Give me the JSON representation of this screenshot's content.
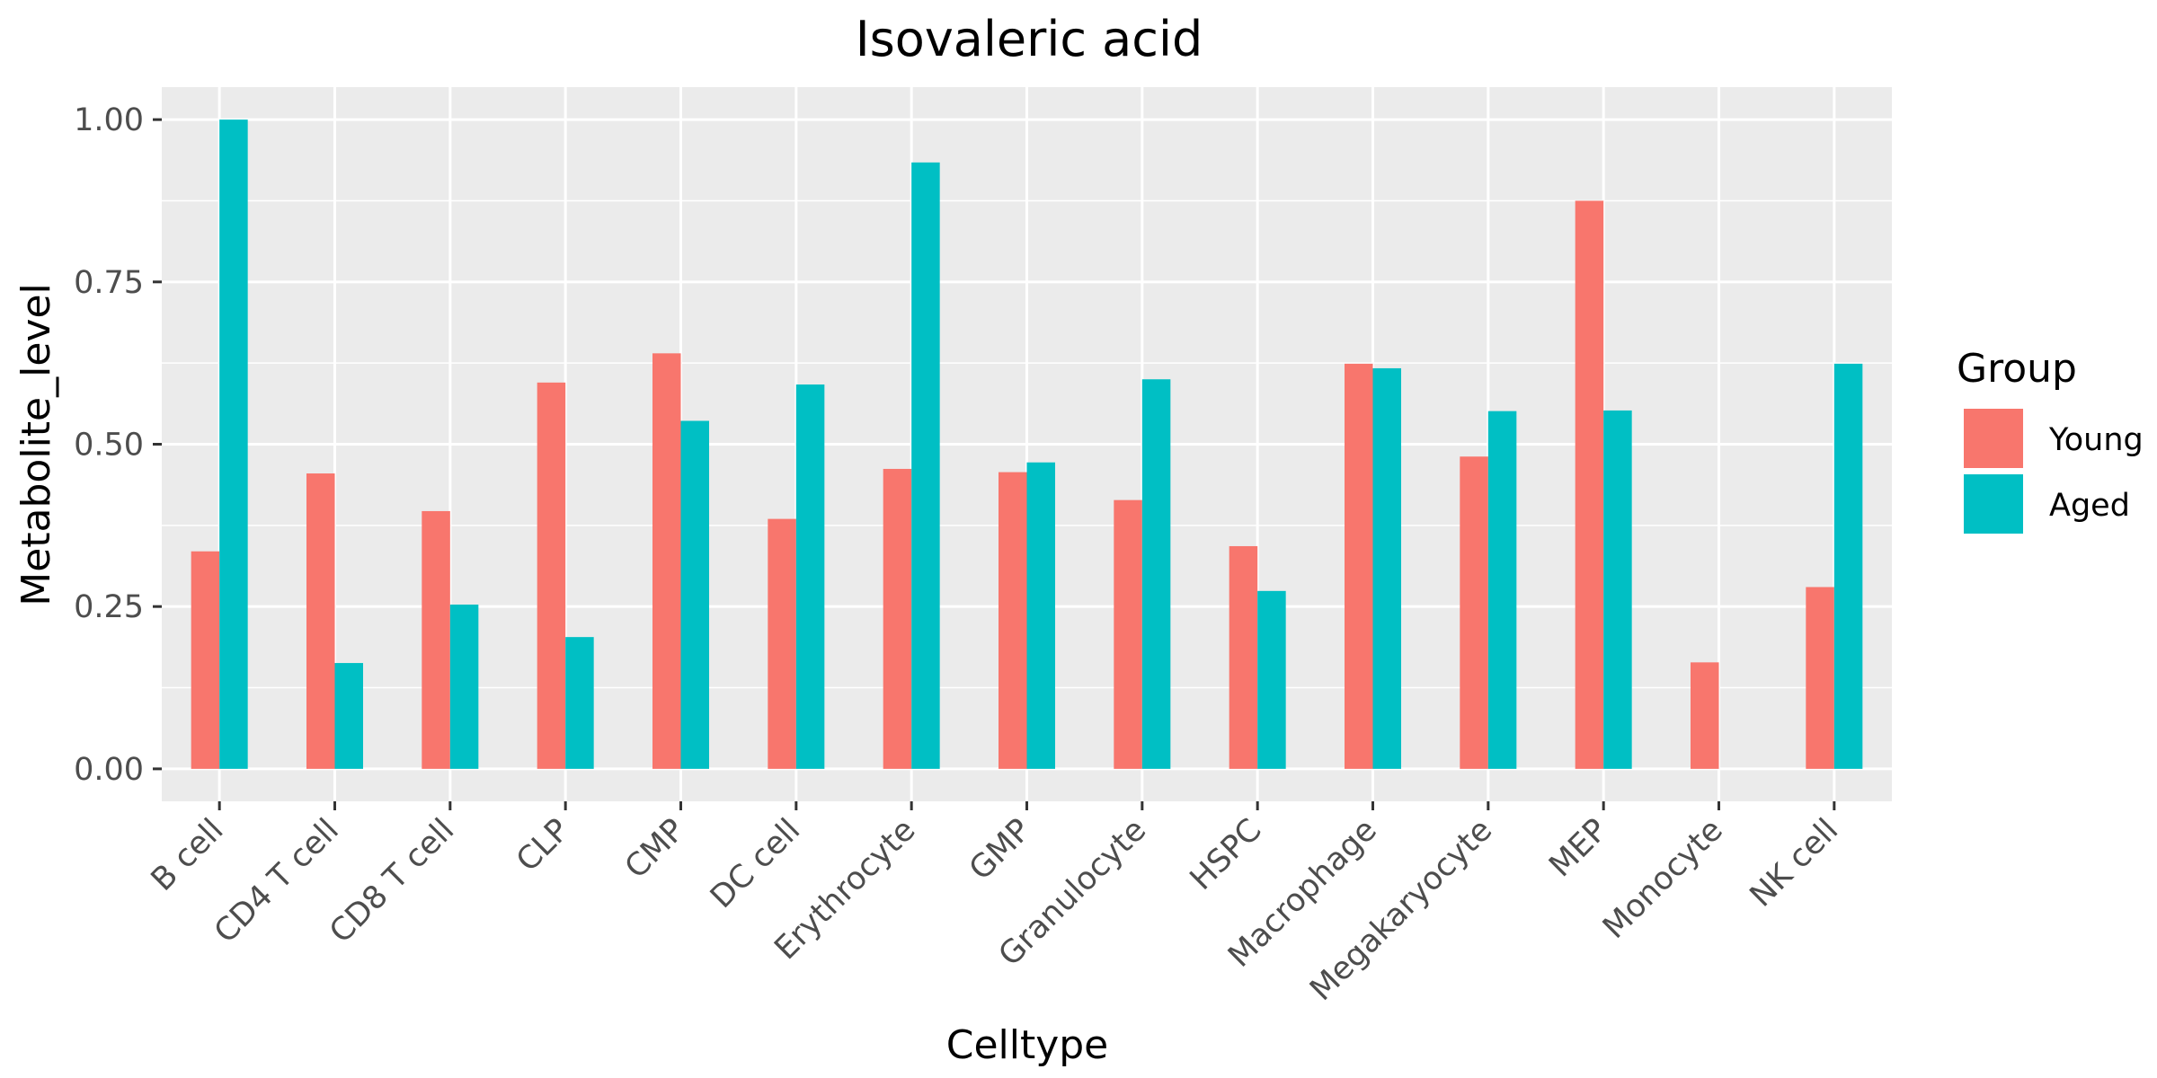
{
  "chart_data": {
    "type": "bar",
    "title": "Isovaleric acid",
    "xlabel": "Celltype",
    "ylabel": "Metabolite_level",
    "ylim": [
      -0.05,
      1.05
    ],
    "yticks": [
      "0.00",
      "0.25",
      "0.50",
      "0.75",
      "1.00"
    ],
    "ytick_values": [
      0,
      0.25,
      0.5,
      0.75,
      1.0
    ],
    "grid": true,
    "legend": {
      "title": "Group",
      "position": "right"
    },
    "categories": [
      "B cell",
      "CD4 T cell",
      "CD8 T cell",
      "CLP",
      "CMP",
      "DC cell",
      "Erythrocyte",
      "GMP",
      "Granulocyte",
      "HSPC",
      "Macrophage",
      "Megakaryocyte",
      "MEP",
      "Monocyte",
      "NK cell"
    ],
    "series": [
      {
        "name": "Young",
        "color": "#F8766D",
        "values": [
          0.335,
          0.455,
          0.397,
          0.595,
          0.64,
          0.385,
          0.462,
          0.457,
          0.414,
          0.343,
          0.624,
          0.481,
          0.875,
          0.164,
          0.28
        ]
      },
      {
        "name": "Aged",
        "color": "#00BFC4",
        "values": [
          1.0,
          0.163,
          0.253,
          0.203,
          0.536,
          0.592,
          0.934,
          0.472,
          0.6,
          0.274,
          0.617,
          0.551,
          0.552,
          null,
          0.624
        ]
      }
    ]
  }
}
